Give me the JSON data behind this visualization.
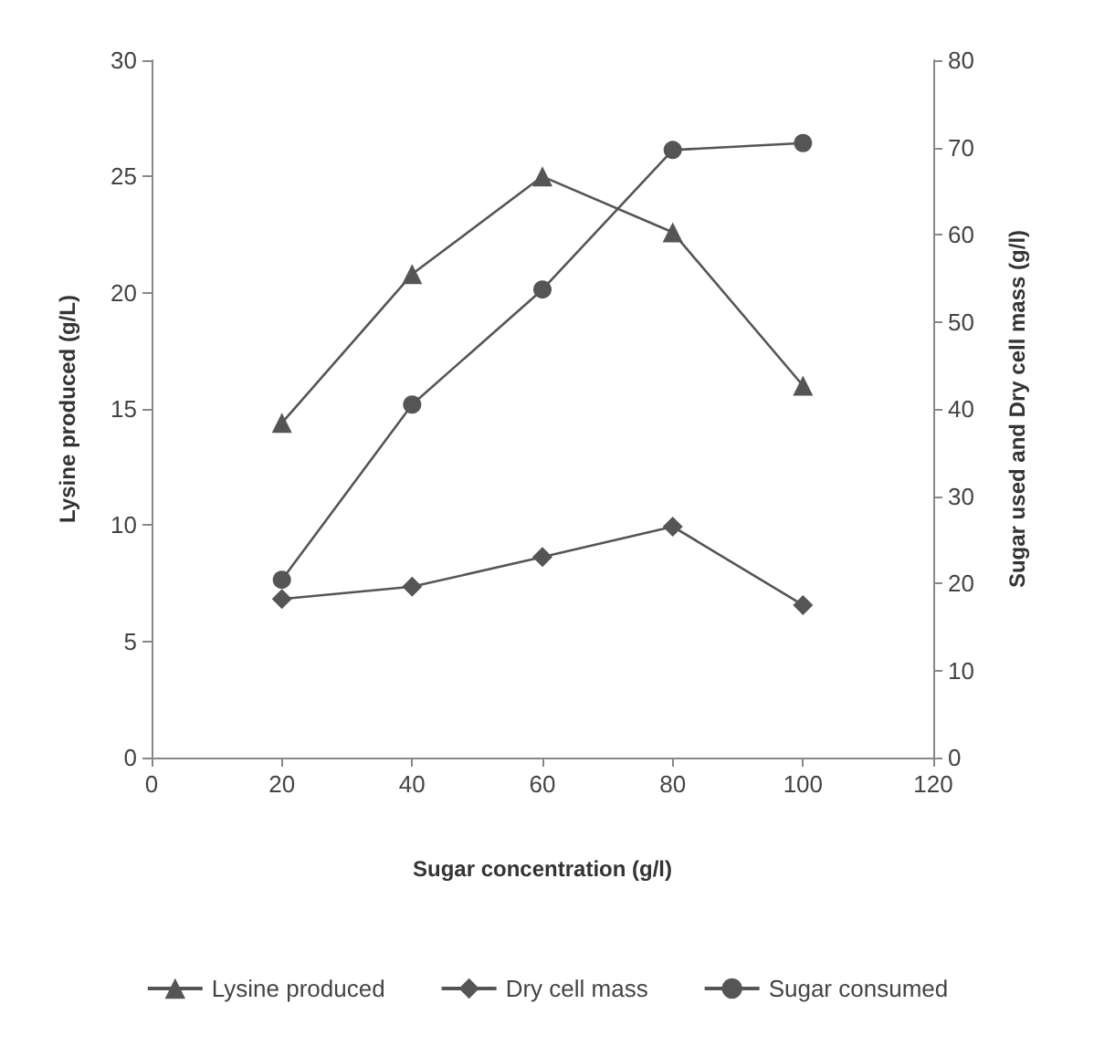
{
  "chart_data": {
    "type": "line",
    "xlabel": "Sugar concentration (g/l)",
    "ylabel": "Lysine produced (g/L)",
    "y2label": "Sugar used and Dry cell mass (g/l)",
    "x": [
      20,
      40,
      60,
      80,
      100
    ],
    "xlim": [
      0,
      120
    ],
    "xticks": [
      0,
      20,
      40,
      60,
      80,
      100,
      120
    ],
    "ylim": [
      0,
      30
    ],
    "yticks": [
      0,
      5,
      10,
      15,
      20,
      25,
      30
    ],
    "y2lim": [
      0,
      80
    ],
    "y2ticks": [
      0,
      10,
      20,
      30,
      40,
      50,
      60,
      70,
      80
    ],
    "series": [
      {
        "name": "Lysine produced",
        "color": "#555555",
        "marker": "triangle",
        "values": [
          14.4,
          20.8,
          25.0,
          22.6,
          16.0
        ]
      },
      {
        "name": "Dry cell mass",
        "color": "#555555",
        "marker": "diamond",
        "axis": "y2",
        "values": [
          18.2,
          19.6,
          23.0,
          26.5,
          17.5
        ]
      },
      {
        "name": "Sugar consumed",
        "color": "#555555",
        "marker": "circle",
        "axis": "y2",
        "values": [
          20.4,
          40.5,
          53.7,
          69.7,
          70.5
        ]
      }
    ],
    "grid": false,
    "legend": "bottom",
    "line_style": "solid"
  }
}
